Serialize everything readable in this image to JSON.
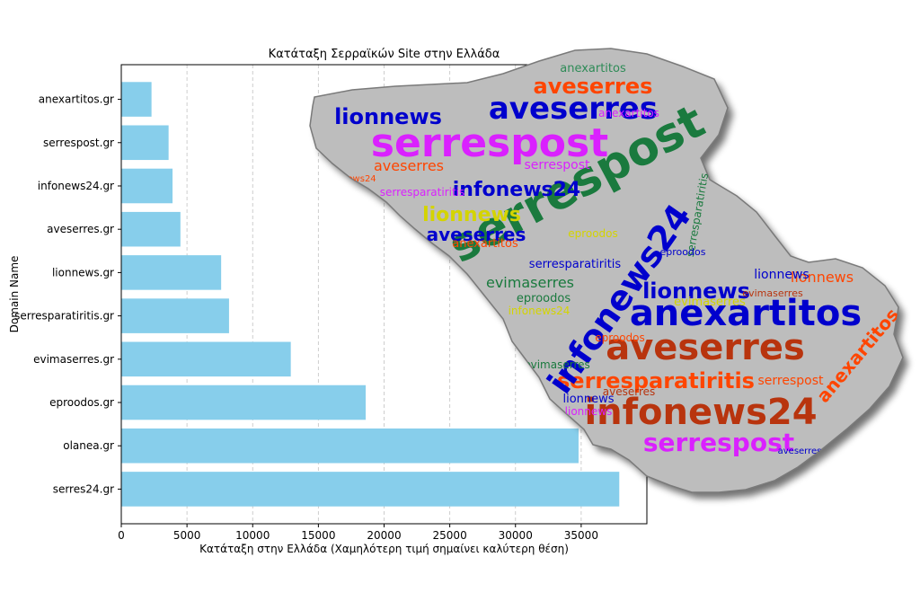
{
  "chart_data": {
    "type": "bar",
    "orientation": "horizontal",
    "title": "Κατάταξη Σερραϊκών Site στην Ελλάδα",
    "xlabel": "Κατάταξη στην Ελλάδα (Χαμηλότερη τιμή σημαίνει καλύτερη θέση)",
    "ylabel": "Domain Name",
    "categories": [
      "anexartitos.gr",
      "serrespost.gr",
      "infonews24.gr",
      "aveserres.gr",
      "lionnews.gr",
      "serresparatiritis.gr",
      "evimaserres.gr",
      "eproodos.gr",
      "olanea.gr",
      "serres24.gr"
    ],
    "values": [
      2300,
      3600,
      3900,
      4500,
      7600,
      8200,
      12900,
      18600,
      34800,
      37900
    ],
    "xlim": [
      0,
      40000
    ],
    "xticks": [
      0,
      5000,
      10000,
      15000,
      20000,
      25000,
      30000,
      35000
    ],
    "grid": "vertical dashed",
    "bar_color": "#87CEEB"
  },
  "wordcloud": {
    "shape": "Serres prefecture map outline",
    "background": "#bdbdbd",
    "words": [
      {
        "text": "anexartitos",
        "color": "#2e8b57"
      },
      {
        "text": "aveserres",
        "color": "#ff4500"
      },
      {
        "text": "aveserres",
        "color": "#0000cd"
      },
      {
        "text": "lionnews",
        "color": "#0000cd"
      },
      {
        "text": "serrespost",
        "color": "#da20ff"
      },
      {
        "text": "serrespost",
        "color": "#1a7a3e"
      },
      {
        "text": "infonews24",
        "color": "#0000cd"
      },
      {
        "text": "lionnews",
        "color": "#d4d400"
      },
      {
        "text": "aveserres",
        "color": "#0000cd"
      },
      {
        "text": "lionnews",
        "color": "#0000cd"
      },
      {
        "text": "anexartitos",
        "color": "#0000cd"
      },
      {
        "text": "aveserres",
        "color": "#b8340e"
      },
      {
        "text": "serresparatiritis",
        "color": "#ff4500"
      },
      {
        "text": "infonews24",
        "color": "#b8340e"
      },
      {
        "text": "serrespost",
        "color": "#da20ff"
      },
      {
        "text": "infonews24",
        "color": "#0000cd"
      },
      {
        "text": "anexartitos",
        "color": "#ff4500"
      },
      {
        "text": "evimaserres",
        "color": "#1a7a3e"
      },
      {
        "text": "eproodos",
        "color": "#1a7a3e"
      },
      {
        "text": "lionnews",
        "color": "#ff4500"
      },
      {
        "text": "evimaserres",
        "color": "#d4d400"
      },
      {
        "text": "anexartitos",
        "color": "#ff4500"
      },
      {
        "text": "lionnews",
        "color": "#0000cd"
      },
      {
        "text": "aveserres",
        "color": "#ff4500"
      },
      {
        "text": "serresparatiritis",
        "color": "#da20ff"
      },
      {
        "text": "infonews24",
        "color": "#ff4500"
      },
      {
        "text": "eproodos",
        "color": "#d4d400"
      },
      {
        "text": "serrespost",
        "color": "#da20ff"
      },
      {
        "text": "evimaserres",
        "color": "#b8340e"
      },
      {
        "text": "lionnews",
        "color": "#0000cd"
      },
      {
        "text": "infonews24",
        "color": "#d4d400"
      },
      {
        "text": "serresparatiritis",
        "color": "#1a7a3e"
      },
      {
        "text": "aveserres",
        "color": "#0000cd"
      },
      {
        "text": "anexartitos",
        "color": "#da20ff"
      },
      {
        "text": "evimaserres",
        "color": "#1a7a3e"
      },
      {
        "text": "eproodos",
        "color": "#ff4500"
      },
      {
        "text": "serrespost",
        "color": "#ff4500"
      },
      {
        "text": "lionnews",
        "color": "#da20ff"
      },
      {
        "text": "infonews24",
        "color": "#0000cd"
      },
      {
        "text": "aveserres",
        "color": "#b8340e"
      },
      {
        "text": "eproodos",
        "color": "#0000cd"
      },
      {
        "text": "serresparatiritis",
        "color": "#0000cd"
      }
    ]
  }
}
